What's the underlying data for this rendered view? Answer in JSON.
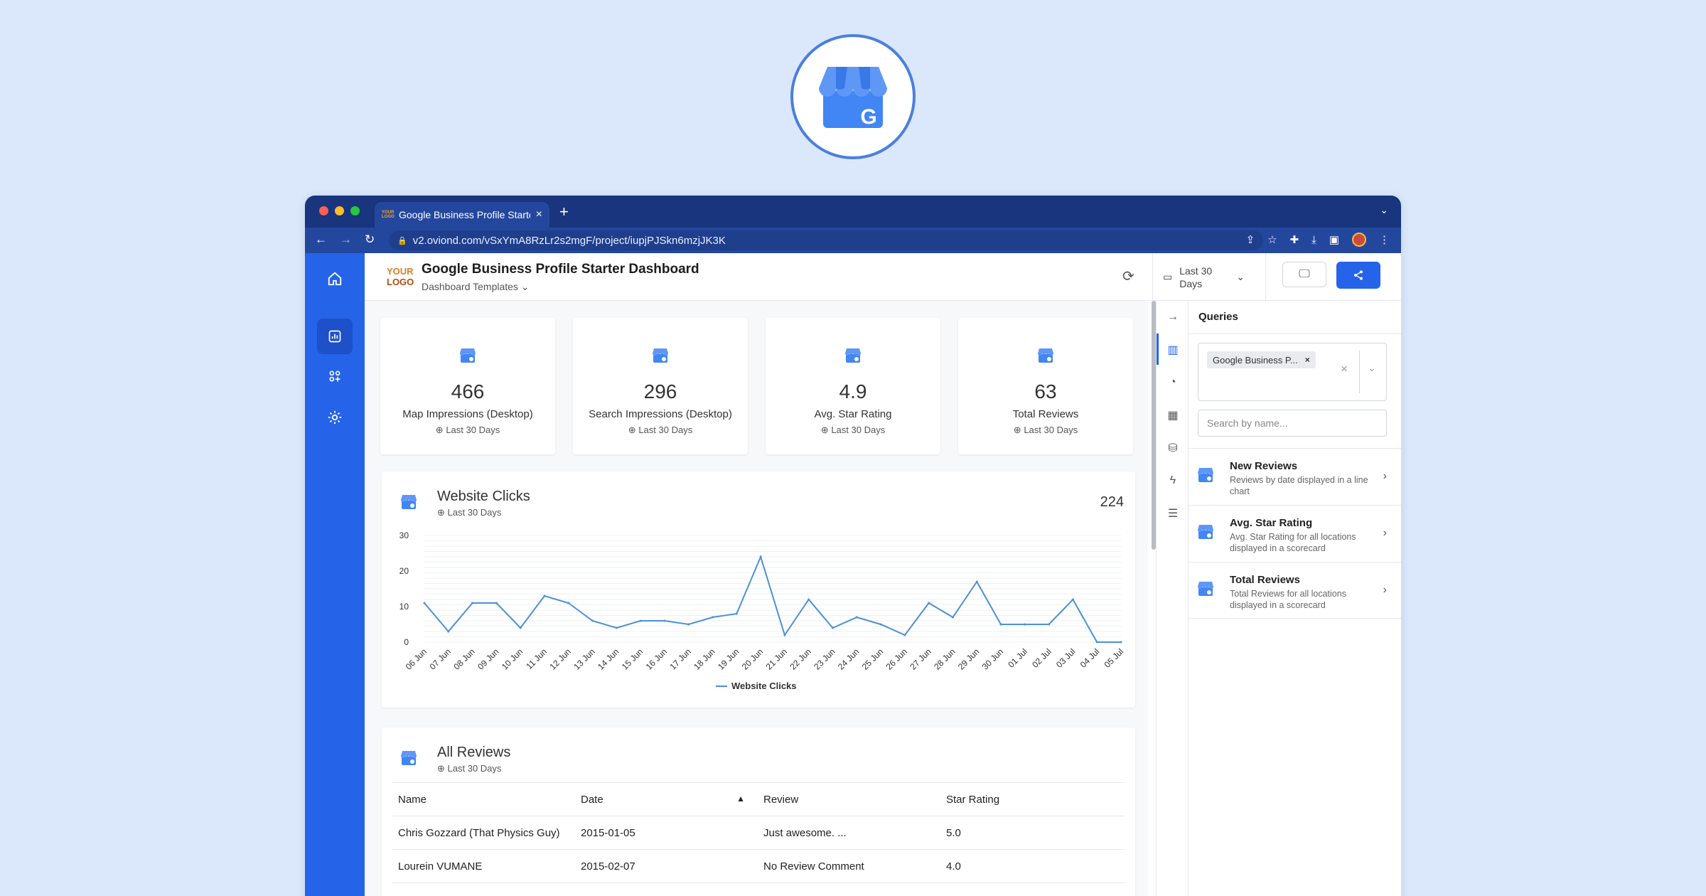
{
  "browser": {
    "tab_title": "Google Business Profile Starter",
    "tab_logo": "YOUR LOGO",
    "url": "v2.oviond.com/vSxYmA8RzLr2s2mgF/project/iupjPJSkn6mzjJK3K"
  },
  "header": {
    "logo_line1": "YOUR",
    "logo_line2": "LOGO",
    "title": "Google Business Profile Starter Dashboard",
    "subtitle": "Dashboard Templates",
    "date_range": "Last 30 Days"
  },
  "kpis": [
    {
      "value": "466",
      "label": "Map Impressions (Desktop)",
      "period": "Last 30 Days"
    },
    {
      "value": "296",
      "label": "Search Impressions (Desktop)",
      "period": "Last 30 Days"
    },
    {
      "value": "4.9",
      "label": "Avg. Star Rating",
      "period": "Last 30 Days"
    },
    {
      "value": "63",
      "label": "Total Reviews",
      "period": "Last 30 Days"
    }
  ],
  "clicks_card": {
    "title": "Website Clicks",
    "period": "Last 30 Days",
    "total": "224"
  },
  "chart_data": {
    "type": "line",
    "x": [
      "06 Jun",
      "07 Jun",
      "08 Jun",
      "09 Jun",
      "10 Jun",
      "11 Jun",
      "12 Jun",
      "13 Jun",
      "14 Jun",
      "15 Jun",
      "16 Jun",
      "17 Jun",
      "18 Jun",
      "19 Jun",
      "20 Jun",
      "21 Jun",
      "22 Jun",
      "23 Jun",
      "24 Jun",
      "25 Jun",
      "26 Jun",
      "27 Jun",
      "28 Jun",
      "29 Jun",
      "30 Jun",
      "01 Jul",
      "02 Jul",
      "03 Jul",
      "04 Jul",
      "05 Jul"
    ],
    "series": [
      {
        "name": "Website Clicks",
        "values": [
          11,
          3,
          11,
          11,
          4,
          13,
          11,
          6,
          4,
          6,
          6,
          5,
          7,
          8,
          24,
          2,
          12,
          4,
          7,
          5,
          2,
          11,
          7,
          17,
          5,
          5,
          5,
          12,
          0,
          0
        ]
      }
    ],
    "ylim": [
      0,
      30
    ],
    "yticks": [
      0,
      10,
      20,
      30
    ],
    "legend": "bottom",
    "color": "#4a90d9"
  },
  "reviews_card": {
    "title": "All Reviews",
    "period": "Last 30 Days",
    "columns": [
      "Name",
      "Date",
      "Review",
      "Star Rating"
    ],
    "rows": [
      [
        "Chris Gozzard (That Physics Guy)",
        "2015-01-05",
        "Just awesome. ...",
        "5.0"
      ],
      [
        "Lourein VUMANE",
        "2015-02-07",
        "No Review Comment",
        "4.0"
      ]
    ]
  },
  "queries": {
    "title": "Queries",
    "selected": "Google Business P...",
    "search_placeholder": "Search by name...",
    "items": [
      {
        "name": "New Reviews",
        "desc": "Reviews by date displayed in a line chart"
      },
      {
        "name": "Avg. Star Rating",
        "desc": "Avg. Star Rating for all locations displayed in a scorecard"
      },
      {
        "name": "Total Reviews",
        "desc": "Total Reviews for all locations displayed in a scorecard"
      }
    ]
  },
  "colors": {
    "accent": "#2563e8",
    "browser_chrome": "#18357d",
    "background": "#dbe8fb"
  }
}
